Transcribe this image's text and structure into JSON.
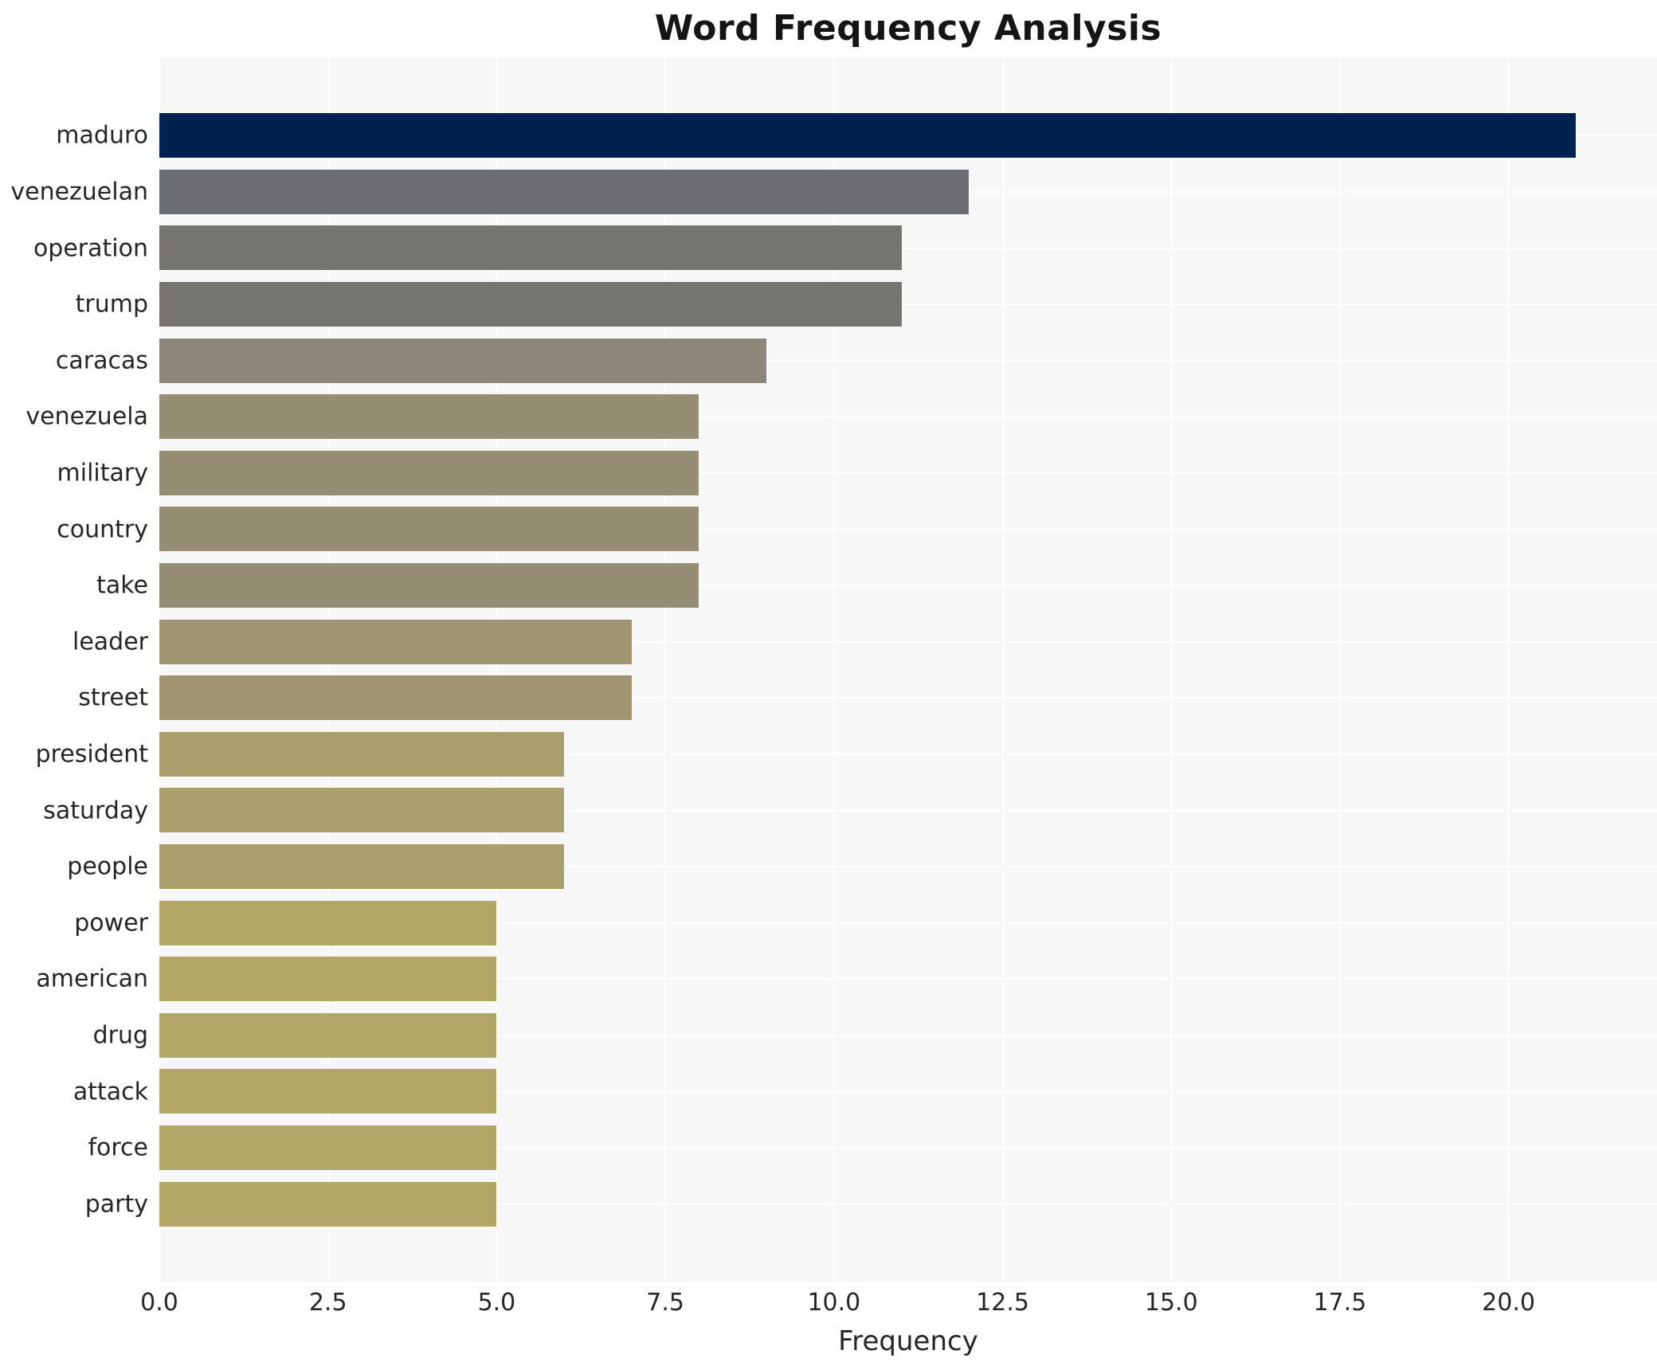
{
  "title": "Word Frequency Analysis",
  "chart_data": {
    "type": "bar",
    "orientation": "horizontal",
    "title": "Word Frequency Analysis",
    "xlabel": "Frequency",
    "ylabel": "",
    "categories": [
      "maduro",
      "venezuelan",
      "operation",
      "trump",
      "caracas",
      "venezuela",
      "military",
      "country",
      "take",
      "leader",
      "street",
      "president",
      "saturday",
      "people",
      "power",
      "american",
      "drug",
      "attack",
      "force",
      "party"
    ],
    "values": [
      21,
      12,
      11,
      11,
      9,
      8,
      8,
      8,
      8,
      7,
      7,
      6,
      6,
      6,
      5,
      5,
      5,
      5,
      5,
      5
    ],
    "bar_colors": [
      "#00224e",
      "#6c6e72",
      "#757470",
      "#757470",
      "#8c8778",
      "#958e75",
      "#958e75",
      "#958e75",
      "#958e75",
      "#9f9671",
      "#9f9671",
      "#a99e6c",
      "#a99e6c",
      "#a99e6c",
      "#b3a767",
      "#b3a767",
      "#b3a767",
      "#b3a767",
      "#b3a767",
      "#b3a767"
    ],
    "xlim": [
      0,
      22.2
    ],
    "xticks": [
      0,
      2.5,
      5,
      7.5,
      10,
      12.5,
      15,
      17.5,
      20
    ],
    "xtick_labels": [
      "0.0",
      "2.5",
      "5.0",
      "7.5",
      "10.0",
      "12.5",
      "15.0",
      "17.5",
      "20.0"
    ],
    "grid": true,
    "legend": false,
    "plot_bg_color": "#f7f7f8",
    "grid_color": "#ffffff",
    "title_color": "#151515",
    "tick_label_color": "#262626"
  }
}
